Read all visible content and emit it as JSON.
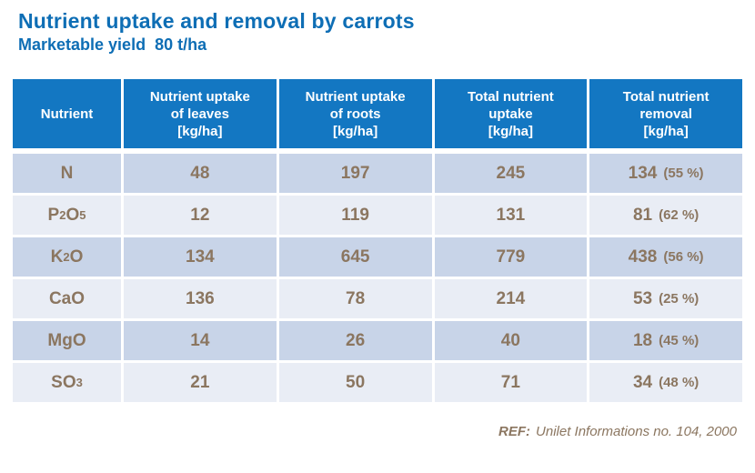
{
  "title": "Nutrient uptake and removal by carrots",
  "subtitle": "Marketable yield  80 t/ha",
  "colors": {
    "accent_blue": "#1377c2",
    "title_blue": "#0e6eb5",
    "row_dark": "#c8d4e8",
    "row_light": "#e9edf5",
    "value_brown": "#8b7660",
    "header_text": "#ffffff",
    "background": "#ffffff"
  },
  "table": {
    "columns": [
      "Nutrient",
      "Nutrient uptake\nof leaves\n[kg/ha]",
      "Nutrient uptake\nof roots\n[kg/ha]",
      "Total nutrient\nuptake\n[kg/ha]",
      "Total nutrient\nremoval\n[kg/ha]"
    ],
    "rows": [
      {
        "nutrient": "N",
        "nutrient_parts": [
          {
            "t": "N"
          }
        ],
        "leaves": "48",
        "roots": "197",
        "total_uptake": "245",
        "removal": "134",
        "removal_pct": "(55 %)"
      },
      {
        "nutrient": "P2O5",
        "nutrient_parts": [
          {
            "t": "P"
          },
          {
            "t": "2",
            "sub": true
          },
          {
            "t": "O"
          },
          {
            "t": "5",
            "sub": true
          }
        ],
        "leaves": "12",
        "roots": "119",
        "total_uptake": "131",
        "removal": "81",
        "removal_pct": "(62 %)"
      },
      {
        "nutrient": "K2O",
        "nutrient_parts": [
          {
            "t": "K"
          },
          {
            "t": "2",
            "sub": true
          },
          {
            "t": "O"
          }
        ],
        "leaves": "134",
        "roots": "645",
        "total_uptake": "779",
        "removal": "438",
        "removal_pct": "(56 %)"
      },
      {
        "nutrient": "CaO",
        "nutrient_parts": [
          {
            "t": "CaO"
          }
        ],
        "leaves": "136",
        "roots": "78",
        "total_uptake": "214",
        "removal": "53",
        "removal_pct": "(25 %)"
      },
      {
        "nutrient": "MgO",
        "nutrient_parts": [
          {
            "t": "MgO"
          }
        ],
        "leaves": "14",
        "roots": "26",
        "total_uptake": "40",
        "removal": "18",
        "removal_pct": "(45 %)"
      },
      {
        "nutrient": "SO3",
        "nutrient_parts": [
          {
            "t": "SO"
          },
          {
            "t": "3",
            "sub": true
          }
        ],
        "leaves": "21",
        "roots": "50",
        "total_uptake": "71",
        "removal": "34",
        "removal_pct": "(48 %)"
      }
    ]
  },
  "footer": {
    "ref_label": "REF:",
    "ref_text": "Unilet Informations no. 104, 2000"
  }
}
